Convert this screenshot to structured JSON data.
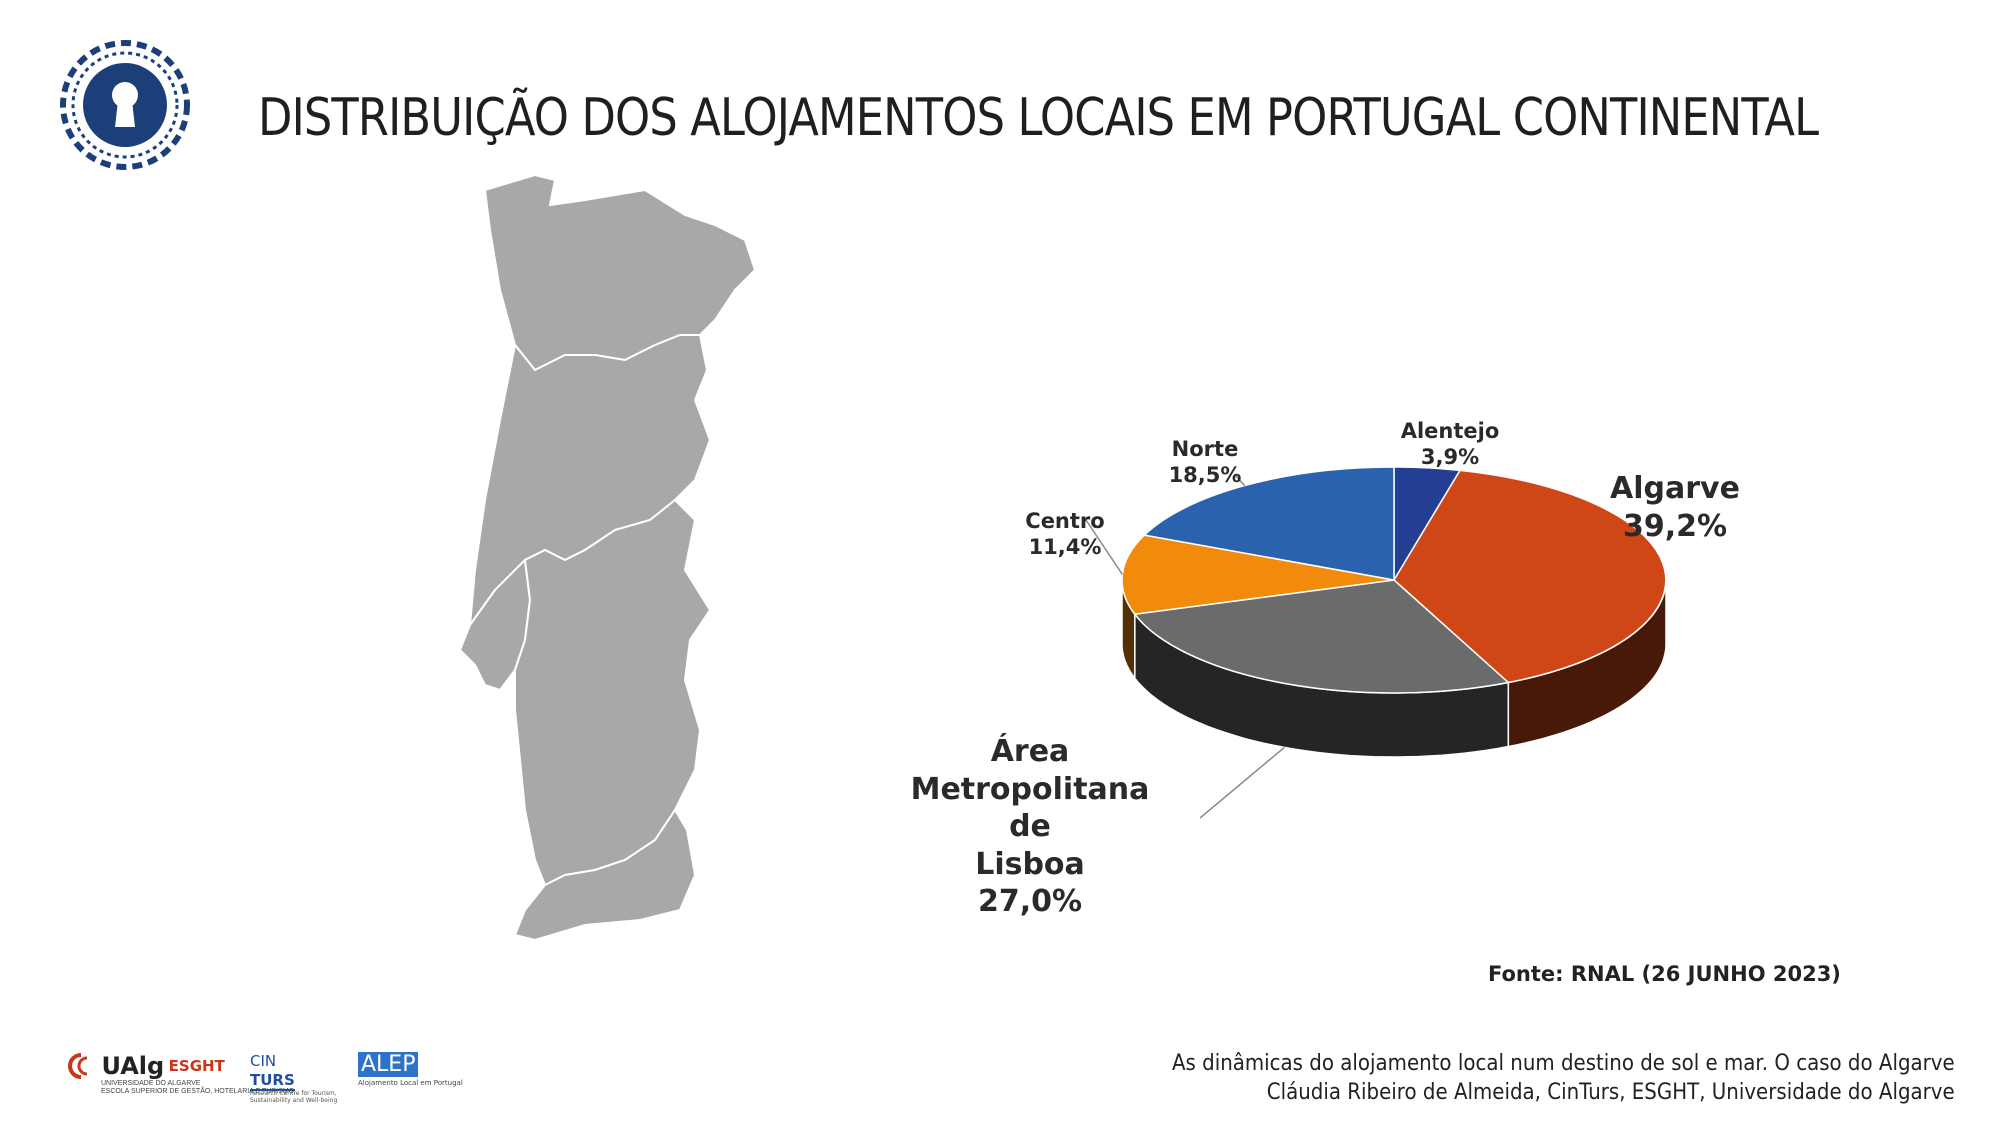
{
  "title": "DISTRIBUIÇÃO DOS ALOJAMENTOS LOCAIS EM PORTUGAL CONTINENTAL",
  "source": "Fonte: RNAL (26 JUNHO 2023)",
  "footer": {
    "line1": "As dinâmicas do alojamento local num destino de sol e mar. O caso do Algarve",
    "line2": "Cláudia Ribeiro de Almeida, CinTurs, ESGHT, Universidade do Algarve"
  },
  "logos": {
    "ualg_name": "UAlg",
    "ualg_esght": "ESGHT",
    "ualg_line1": "UNIVERSIDADE DO ALGARVE",
    "ualg_line2": "ESCOLA SUPERIOR DE GESTÃO, HOTELARIA E TURISMO",
    "cinturs_a": "CIN",
    "cinturs_b": "TURS",
    "cinturs_c": "Research Centre for Tourism, Sustainability and Well-being",
    "alep_a": "ALEP",
    "alep_b": "Alojamento Local em Portugal"
  },
  "colors": {
    "map_fill": "#a8a8a8",
    "logo_blue": "#1c3f7a"
  },
  "chart_data": {
    "type": "pie",
    "style": "3d",
    "title": "",
    "slices": [
      {
        "label": "Alentejo",
        "value": 3.9,
        "value_label": "3,9%",
        "color": "#233e93"
      },
      {
        "label": "Algarve",
        "value": 39.2,
        "value_label": "39,2%",
        "color": "#cf4716"
      },
      {
        "label": "Área Metropolitana de Lisboa",
        "label_lines": [
          "Área",
          "Metropolitana de",
          "Lisboa"
        ],
        "value": 27.0,
        "value_label": "27,0%",
        "color": "#6b6b6b"
      },
      {
        "label": "Centro",
        "value": 11.4,
        "value_label": "11,4%",
        "color": "#f28a0c"
      },
      {
        "label": "Norte",
        "value": 18.5,
        "value_label": "18,5%",
        "color": "#2b62ae"
      }
    ]
  }
}
